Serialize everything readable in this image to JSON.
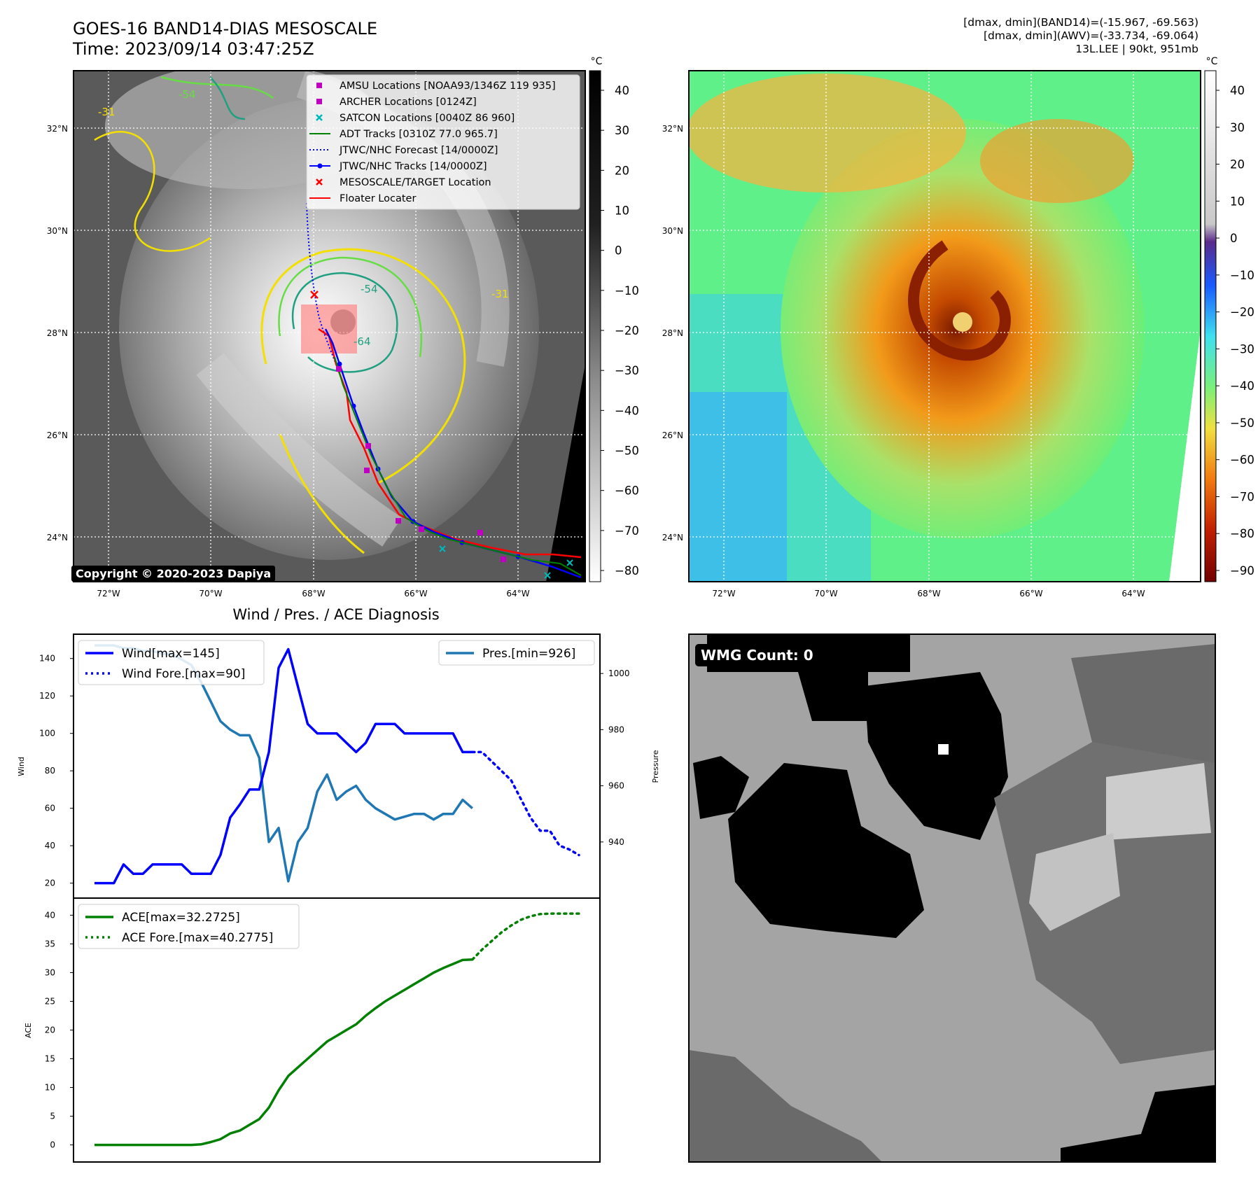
{
  "header": {
    "title_line1": "GOES-16 BAND14-DIAS MESOSCALE",
    "title_line2": "Time: 2023/09/14 03:47:25Z",
    "info_line1": "[dmax, dmin](BAND14)=(-15.967, -69.563)",
    "info_line2": "[dmax, dmin](AWV)=(-33.734, -69.064)",
    "info_line3": "13L.LEE | 90kt, 951mb"
  },
  "maps": {
    "lat_labels": [
      "32°N",
      "30°N",
      "28°N",
      "26°N",
      "24°N"
    ],
    "lon_labels": [
      "72°W",
      "70°W",
      "68°W",
      "66°W",
      "64°W"
    ],
    "copyright": "Copyright © 2020-2023 Dapiya",
    "legend": [
      {
        "label": "AMSU Locations [NOAA93/1346Z 119 935]",
        "marker": "square",
        "color": "#c000c0"
      },
      {
        "label": "ARCHER Locations [0124Z]",
        "marker": "square",
        "color": "#c000c0"
      },
      {
        "label": "SATCON Locations [0040Z 86 960]",
        "marker": "x",
        "color": "#00b8b8"
      },
      {
        "label": "ADT Tracks [0310Z 77.0 965.7]",
        "marker": "line",
        "color": "#008000"
      },
      {
        "label": "JTWC/NHC Forecast [14/0000Z]",
        "marker": "dotted",
        "color": "#0000ff"
      },
      {
        "label": "JTWC/NHC Tracks [14/0000Z]",
        "marker": "line-dot",
        "color": "#0000ff"
      },
      {
        "label": "MESOSCALE/TARGET Location",
        "marker": "x",
        "color": "#ff0000"
      },
      {
        "label": "Floater Locater",
        "marker": "line",
        "color": "#ff0000"
      }
    ],
    "contour_labels": [
      "-54",
      "-31",
      "-54",
      "-31",
      "-64"
    ],
    "cbar_unit": "°C",
    "cbar1_ticks": [
      "40",
      "30",
      "20",
      "10",
      "0",
      "−10",
      "−20",
      "−30",
      "−40",
      "−50",
      "−60",
      "−70",
      "−80"
    ],
    "cbar2_ticks": [
      "40",
      "30",
      "20",
      "10",
      "0",
      "−10",
      "−20",
      "−30",
      "−40",
      "−50",
      "−60",
      "−70",
      "−80",
      "−90"
    ]
  },
  "diagnosis": {
    "title": "Wind / Pres. / ACE Diagnosis",
    "wind_ylabel": "Wind",
    "pres_ylabel": "Pressure",
    "ace_ylabel": "ACE",
    "wind_ticks": [
      "140",
      "120",
      "100",
      "80",
      "60",
      "40",
      "20"
    ],
    "pres_ticks": [
      "1000",
      "980",
      "960",
      "940"
    ],
    "ace_ticks": [
      "40",
      "35",
      "30",
      "25",
      "20",
      "15",
      "10",
      "5",
      "0"
    ],
    "legend_wind": "Wind[max=145]",
    "legend_wind_fore": "Wind Fore.[max=90]",
    "legend_pres": "Pres.[min=926]",
    "legend_ace": "ACE[max=32.2725]",
    "legend_ace_fore": "ACE Fore.[max=40.2775]"
  },
  "wmg": {
    "label": "WMG Count: 0"
  },
  "colors": {
    "wind": "#0000ff",
    "pressure": "#1f77b4",
    "ace": "#008000"
  },
  "chart_data": [
    {
      "type": "line",
      "title": "Wind / Pres. / ACE Diagnosis",
      "ylabel": "Wind",
      "ylim": [
        15,
        150
      ],
      "series": [
        {
          "name": "Wind[max=145]",
          "x": [
            0,
            1,
            2,
            3,
            4,
            5,
            6,
            7,
            8,
            9,
            10,
            11,
            12,
            13,
            14,
            15,
            16,
            17,
            18,
            19,
            20,
            21,
            22,
            23,
            24,
            25,
            26,
            27,
            28,
            29,
            30,
            31,
            32,
            33,
            34,
            35,
            36,
            37,
            38,
            39
          ],
          "values": [
            20,
            20,
            20,
            30,
            25,
            25,
            30,
            30,
            30,
            30,
            25,
            25,
            25,
            35,
            55,
            62,
            70,
            70,
            90,
            135,
            145,
            125,
            105,
            100,
            100,
            100,
            95,
            90,
            95,
            105,
            105,
            105,
            100,
            100,
            100,
            100,
            100,
            100,
            90,
            90
          ]
        },
        {
          "name": "Wind Fore.[max=90]",
          "x": [
            39,
            40,
            41,
            42,
            43,
            44,
            45,
            46,
            47,
            48,
            49,
            50
          ],
          "values": [
            90,
            90,
            85,
            80,
            75,
            65,
            55,
            48,
            48,
            40,
            38,
            35
          ]
        }
      ]
    },
    {
      "type": "line",
      "ylabel": "Pressure",
      "ylim": [
        922,
        1012
      ],
      "series": [
        {
          "name": "Pres.[min=926]",
          "x": [
            0,
            1,
            2,
            3,
            4,
            5,
            6,
            7,
            8,
            9,
            10,
            11,
            12,
            13,
            14,
            15,
            16,
            17,
            18,
            19,
            20,
            21,
            22,
            23,
            24,
            25,
            26,
            27,
            28,
            29,
            30,
            31,
            32,
            33,
            34,
            35,
            36,
            37,
            38,
            39
          ],
          "values": [
            1010,
            1010,
            1010,
            1009,
            1009,
            1008,
            1008,
            1007,
            1007,
            1005,
            1003,
            997,
            990,
            983,
            980,
            978,
            978,
            970,
            940,
            945,
            926,
            940,
            945,
            958,
            964,
            955,
            958,
            960,
            955,
            952,
            950,
            948,
            949,
            950,
            950,
            948,
            950,
            950,
            955,
            952
          ]
        }
      ]
    },
    {
      "type": "line",
      "ylabel": "ACE",
      "ylim": [
        -2,
        42
      ],
      "series": [
        {
          "name": "ACE[max=32.2725]",
          "x": [
            0,
            1,
            2,
            3,
            4,
            5,
            6,
            7,
            8,
            9,
            10,
            11,
            12,
            13,
            14,
            15,
            16,
            17,
            18,
            19,
            20,
            21,
            22,
            23,
            24,
            25,
            26,
            27,
            28,
            29,
            30,
            31,
            32,
            33,
            34,
            35,
            36,
            37,
            38,
            39
          ],
          "values": [
            0,
            0,
            0,
            0,
            0,
            0,
            0,
            0,
            0,
            0,
            0,
            0.1,
            0.5,
            1,
            2,
            2.5,
            3.5,
            4.5,
            6.5,
            9.5,
            12,
            13.5,
            15,
            16.5,
            18,
            19,
            20,
            21,
            22.5,
            23.8,
            25,
            26,
            27,
            28,
            29,
            30,
            30.8,
            31.5,
            32.2,
            32.27
          ]
        },
        {
          "name": "ACE Fore.[max=40.2775]",
          "x": [
            39,
            40,
            41,
            42,
            43,
            44,
            45,
            46,
            47,
            48,
            49,
            50
          ],
          "values": [
            32.27,
            34,
            35.5,
            37,
            38.2,
            39.2,
            39.8,
            40.2,
            40.27,
            40.28,
            40.28,
            40.28
          ]
        }
      ]
    }
  ]
}
